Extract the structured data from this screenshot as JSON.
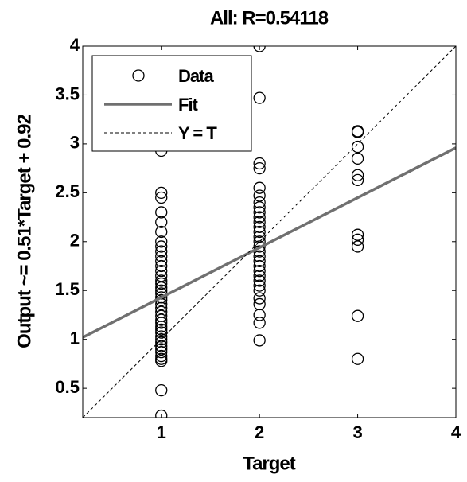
{
  "chart_data": {
    "type": "scatter",
    "title": "All: R=0.54118",
    "xlabel": "Target",
    "ylabel": "Output ~= 0.51*Target + 0.92",
    "xlim": [
      0.2,
      4
    ],
    "ylim": [
      0.2,
      4
    ],
    "xticks": [
      1,
      2,
      3,
      4
    ],
    "yticks": [
      0.5,
      1,
      1.5,
      2,
      2.5,
      3,
      3.5,
      4
    ],
    "legend": "upper left",
    "series": [
      {
        "name": "Data",
        "type": "scatter",
        "color": "#000000",
        "x": [
          1,
          1,
          1,
          1,
          1,
          1,
          1,
          1,
          1,
          1,
          1,
          1,
          1,
          1,
          1,
          1,
          1,
          1,
          1,
          1,
          1,
          1,
          1,
          1,
          1,
          1,
          1,
          1,
          1,
          1,
          1,
          1,
          1,
          1,
          1,
          1,
          1,
          1,
          1,
          1,
          1,
          2,
          2,
          2,
          2,
          2,
          2,
          2,
          2,
          2,
          2,
          2,
          2,
          2,
          2,
          2,
          2,
          2,
          2,
          2,
          2,
          2,
          2,
          2,
          2,
          2,
          2,
          2,
          2,
          2,
          2,
          3,
          3,
          3,
          3,
          3,
          3,
          3,
          3,
          3,
          3,
          3
        ],
        "values": [
          0.22,
          0.48,
          0.78,
          0.8,
          0.83,
          0.87,
          0.9,
          0.93,
          0.97,
          1.0,
          1.03,
          1.07,
          1.1,
          1.13,
          1.17,
          1.2,
          1.24,
          1.28,
          1.32,
          1.36,
          1.4,
          1.43,
          1.47,
          1.5,
          1.53,
          1.57,
          1.6,
          1.65,
          1.7,
          1.75,
          1.8,
          1.85,
          1.9,
          1.95,
          2.0,
          2.1,
          2.2,
          2.3,
          2.45,
          2.5,
          2.93,
          0.99,
          1.17,
          1.25,
          1.36,
          1.42,
          1.5,
          1.55,
          1.6,
          1.65,
          1.7,
          1.75,
          1.8,
          1.85,
          1.9,
          1.95,
          2.0,
          2.05,
          2.1,
          2.15,
          2.2,
          2.25,
          2.3,
          2.35,
          2.4,
          2.47,
          2.55,
          2.75,
          2.8,
          3.47,
          4.0,
          0.8,
          1.24,
          1.95,
          2.02,
          2.07,
          2.63,
          2.68,
          2.85,
          2.97,
          3.12,
          3.13
        ]
      },
      {
        "name": "Fit",
        "type": "line",
        "color": "#707070",
        "x": [
          0.2,
          4
        ],
        "values": [
          1.02,
          2.96
        ]
      },
      {
        "name": "Y = T",
        "type": "line",
        "color": "#000000",
        "dash": true,
        "x": [
          0.2,
          4
        ],
        "values": [
          0.2,
          4
        ]
      }
    ]
  }
}
